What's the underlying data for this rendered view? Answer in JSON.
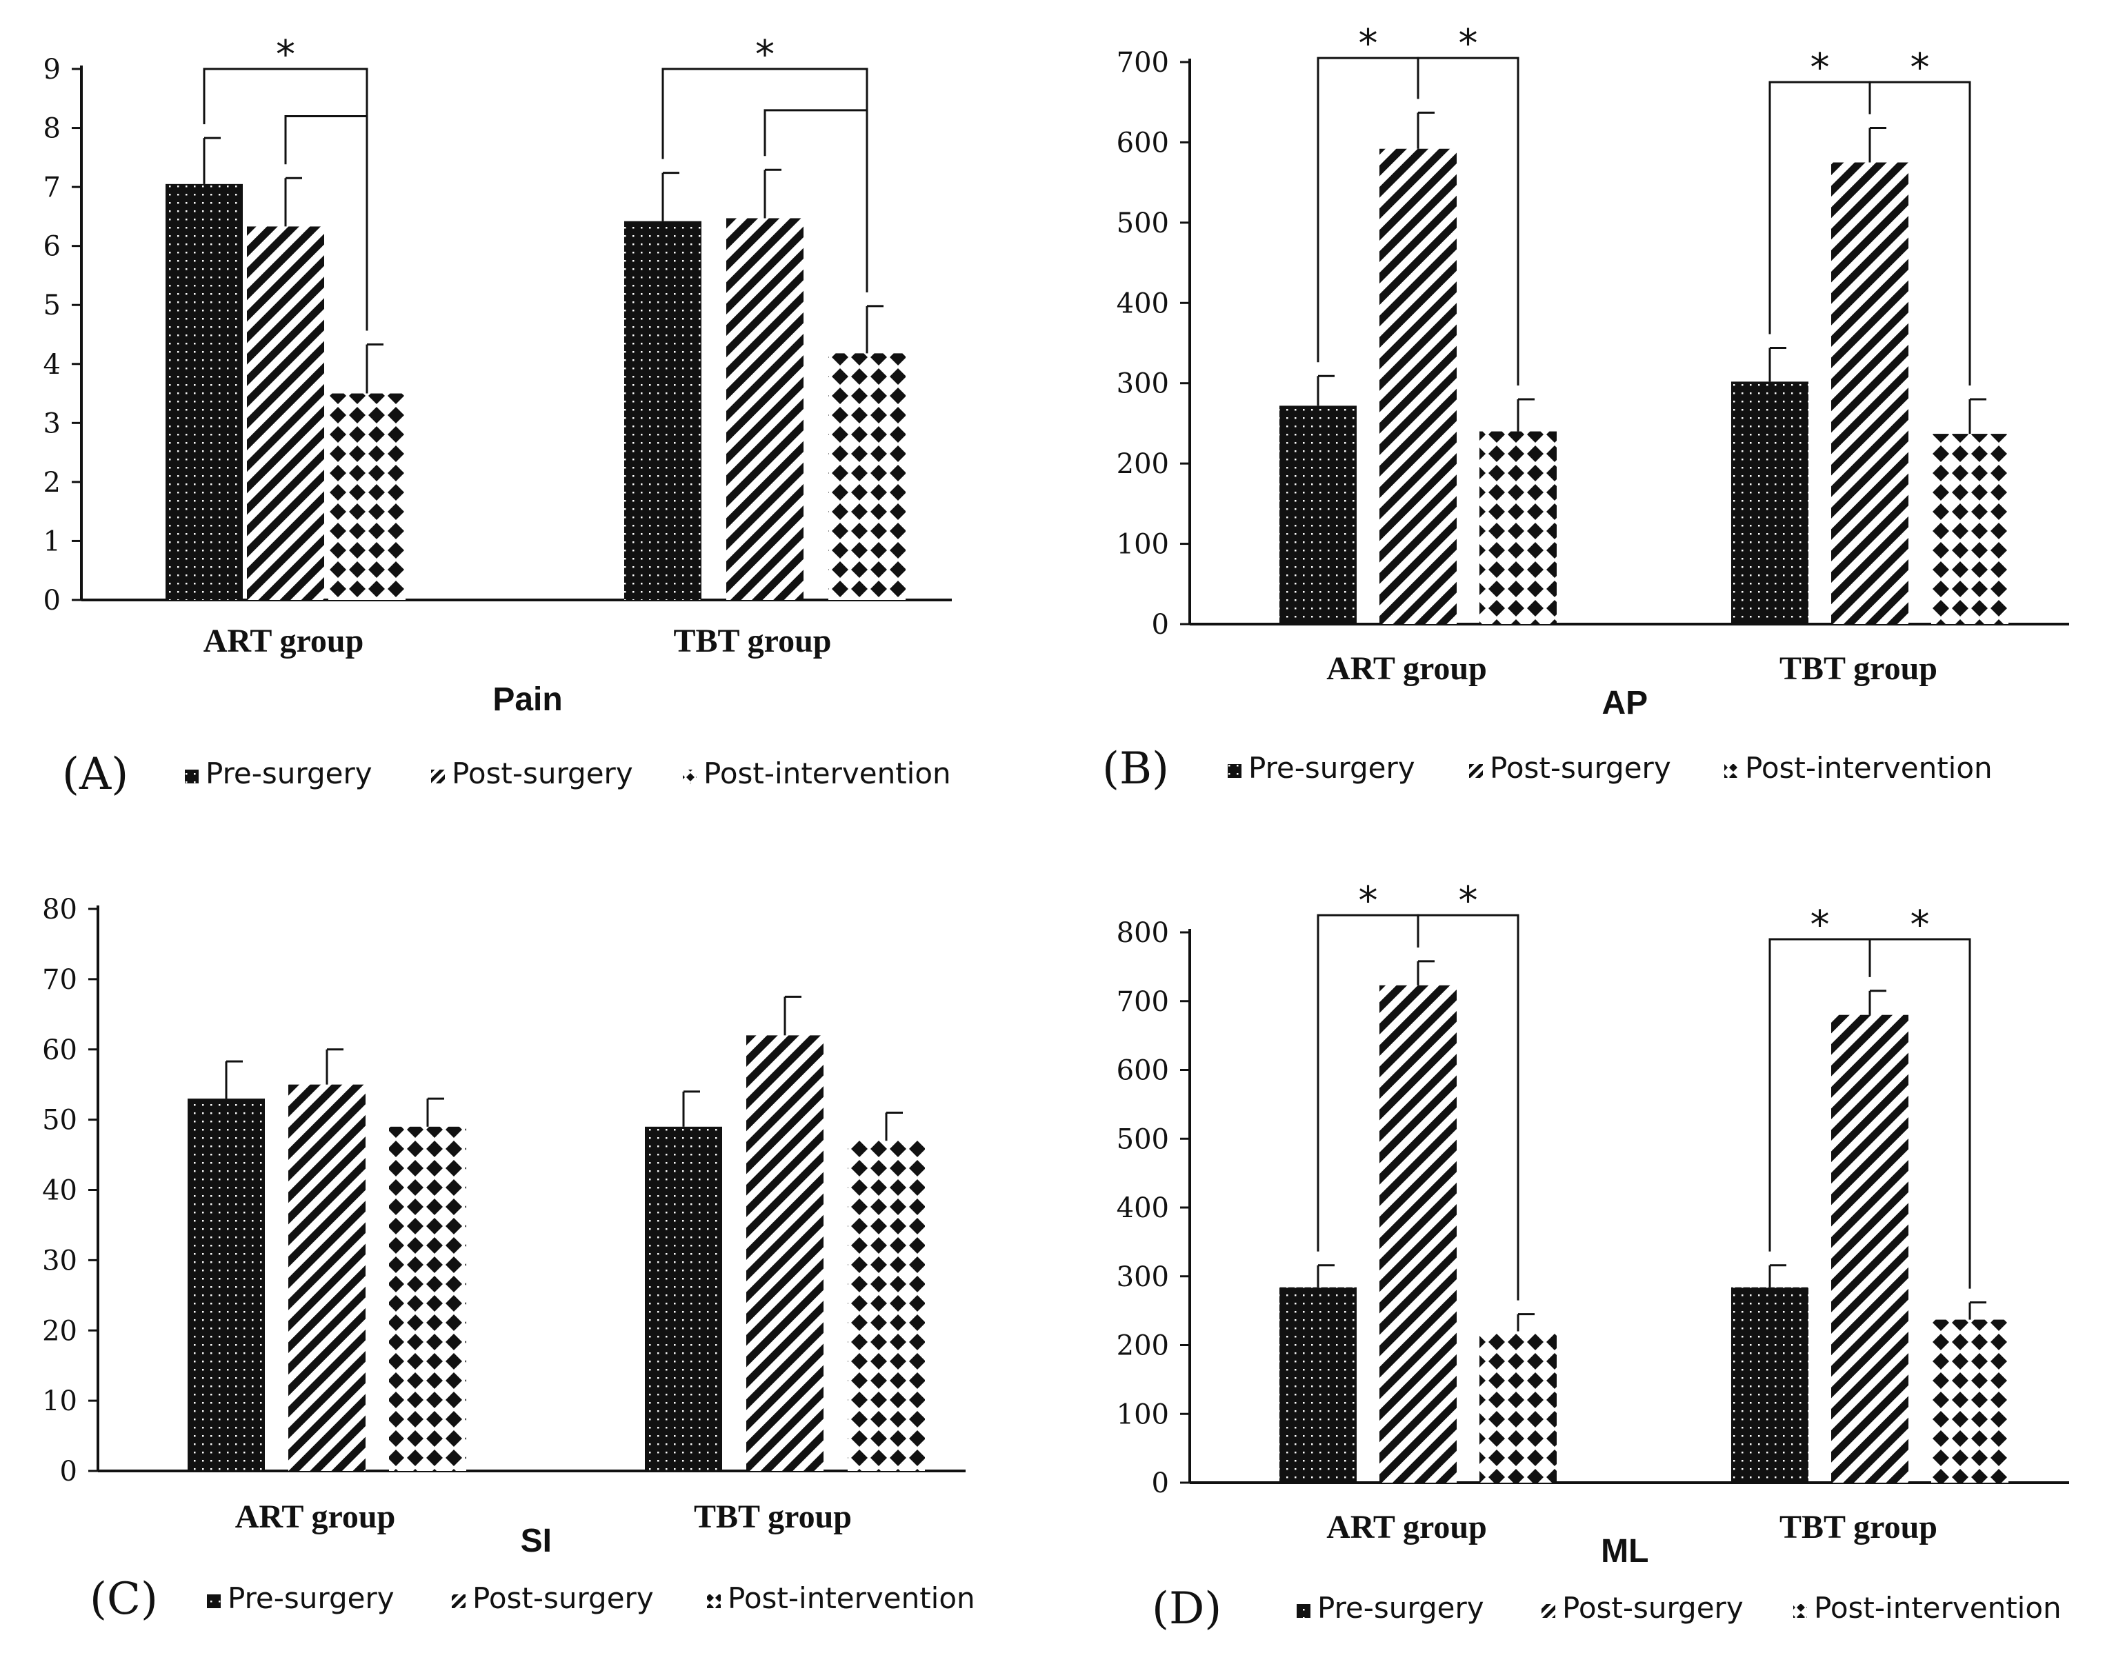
{
  "figure": {
    "patterns": [
      "dots",
      "stripes",
      "diamonds"
    ],
    "colors": {
      "ink": "#111111",
      "background": "#ffffff"
    }
  },
  "chart_data": [
    {
      "type": "bar",
      "panel_label": "(A)",
      "title": "Pain",
      "categories": [
        "ART group",
        "TBT group"
      ],
      "ylim": [
        0,
        9
      ],
      "ytick_step": 1,
      "series": [
        {
          "name": "Pre-surgery",
          "values": [
            7.05,
            6.42
          ],
          "errors": [
            0.78,
            0.82
          ]
        },
        {
          "name": "Post-surgery",
          "values": [
            6.33,
            6.47
          ],
          "errors": [
            0.82,
            0.82
          ]
        },
        {
          "name": "Post-intervention",
          "values": [
            3.5,
            4.18
          ],
          "errors": [
            0.83,
            0.8
          ]
        }
      ],
      "significance": [
        {
          "category": 0,
          "from": 0,
          "to": 2,
          "top": 9.0,
          "label": "*"
        },
        {
          "category": 0,
          "from": 1,
          "to": 2,
          "top": 8.2,
          "label": ""
        },
        {
          "category": 1,
          "from": 0,
          "to": 2,
          "top": 9.0,
          "label": "*"
        },
        {
          "category": 1,
          "from": 1,
          "to": 2,
          "top": 8.3,
          "label": ""
        }
      ]
    },
    {
      "type": "bar",
      "panel_label": "(B)",
      "title": "AP",
      "categories": [
        "ART group",
        "TBT group"
      ],
      "ylim": [
        0,
        700
      ],
      "ytick_step": 100,
      "series": [
        {
          "name": "Pre-surgery",
          "values": [
            272,
            302
          ],
          "errors": [
            37,
            42
          ]
        },
        {
          "name": "Post-surgery",
          "values": [
            592,
            575
          ],
          "errors": [
            45,
            43
          ]
        },
        {
          "name": "Post-intervention",
          "values": [
            240,
            237
          ],
          "errors": [
            40,
            43
          ]
        }
      ],
      "significance": [
        {
          "category": 0,
          "from": 0,
          "to": 1,
          "top": 705,
          "label": "*"
        },
        {
          "category": 0,
          "from": 1,
          "to": 2,
          "top": 705,
          "label": "*"
        },
        {
          "category": 1,
          "from": 0,
          "to": 1,
          "top": 675,
          "label": "*"
        },
        {
          "category": 1,
          "from": 1,
          "to": 2,
          "top": 675,
          "label": "*"
        }
      ]
    },
    {
      "type": "bar",
      "panel_label": "(C)",
      "title": "SI",
      "categories": [
        "ART group",
        "TBT group"
      ],
      "ylim": [
        0,
        80
      ],
      "ytick_step": 10,
      "series": [
        {
          "name": "Pre-surgery",
          "values": [
            53,
            49
          ],
          "errors": [
            5.3,
            5
          ]
        },
        {
          "name": "Post-surgery",
          "values": [
            55,
            62
          ],
          "errors": [
            5,
            5.5
          ]
        },
        {
          "name": "Post-intervention",
          "values": [
            49,
            47
          ],
          "errors": [
            4,
            4
          ]
        }
      ],
      "significance": []
    },
    {
      "type": "bar",
      "panel_label": "(D)",
      "title": "ML",
      "categories": [
        "ART group",
        "TBT group"
      ],
      "ylim": [
        0,
        800
      ],
      "ytick_step": 100,
      "series": [
        {
          "name": "Pre-surgery",
          "values": [
            284,
            284
          ],
          "errors": [
            32,
            32
          ]
        },
        {
          "name": "Post-surgery",
          "values": [
            723,
            680
          ],
          "errors": [
            35,
            35
          ]
        },
        {
          "name": "Post-intervention",
          "values": [
            220,
            237
          ],
          "errors": [
            25,
            25
          ]
        }
      ],
      "significance": [
        {
          "category": 0,
          "from": 0,
          "to": 1,
          "top": 825,
          "label": "*"
        },
        {
          "category": 0,
          "from": 1,
          "to": 2,
          "top": 825,
          "label": "*"
        },
        {
          "category": 1,
          "from": 0,
          "to": 1,
          "top": 790,
          "label": "*"
        },
        {
          "category": 1,
          "from": 1,
          "to": 2,
          "top": 790,
          "label": "*"
        }
      ]
    }
  ]
}
